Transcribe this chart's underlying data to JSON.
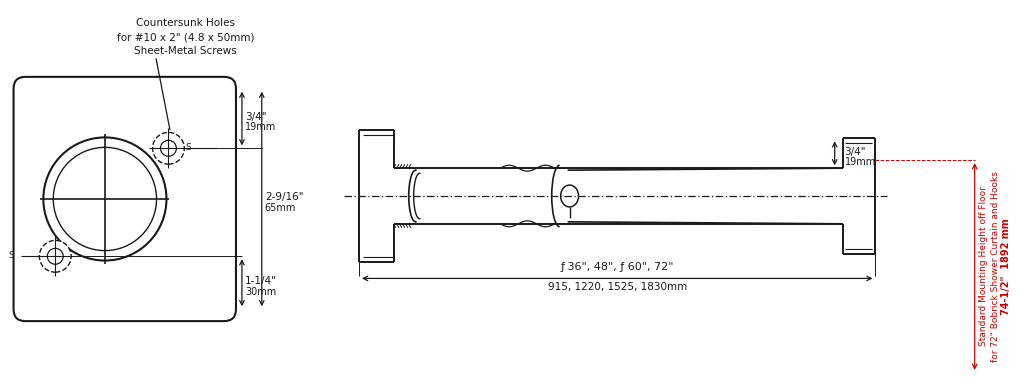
{
  "bg_color": "#ffffff",
  "line_color": "#1a1a1a",
  "red_color": "#cc0000",
  "fig_width": 10.25,
  "fig_height": 3.92,
  "annotation_countersunk": "Countersunk Holes\nfor #10 x 2\" (4.8 x 50mm)\nSheet-Metal Screws",
  "dim_3_4": "3/4\"",
  "dim_19mm": "19mm",
  "dim_2_9_16": "2-9/16\"",
  "dim_65mm": "65mm",
  "dim_1_1_4": "1-1/4\"",
  "dim_30mm": "30mm",
  "dim_lengths_in": "ƒ 36\", 48\", ƒ 60\", 72\"",
  "dim_lengths_mm": "915, 1220, 1525, 1830mm",
  "dim_3_4_right": "3/4\"",
  "dim_19mm_right": "19mm",
  "red_text_main": "Standard Mounting Height off Floor\nfor 72\" Bobrick Shower Curtain and Hooks",
  "red_text_size": "74-1/2\"  1892 mm"
}
